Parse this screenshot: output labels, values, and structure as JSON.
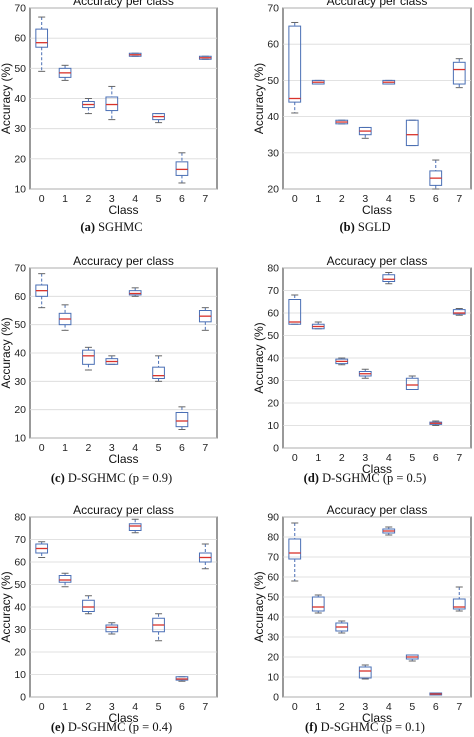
{
  "chart_data": [
    {
      "type": "box",
      "title": "Accuracy per class",
      "xlabel": "Class",
      "ylabel": "Accuracy (%)",
      "caption_letter": "(a)",
      "caption_text": "SGHMC",
      "categories": [
        "0",
        "1",
        "2",
        "3",
        "4",
        "5",
        "6",
        "7"
      ],
      "ylim": [
        10,
        70
      ],
      "yticks": [
        10,
        20,
        30,
        40,
        50,
        60,
        70
      ],
      "grid": true,
      "boxes": [
        {
          "whislo": 49,
          "q1": 57,
          "med": 58.5,
          "q3": 63,
          "whishi": 67
        },
        {
          "whislo": 46,
          "q1": 47,
          "med": 48.5,
          "q3": 50,
          "whishi": 51
        },
        {
          "whislo": 35,
          "q1": 37,
          "med": 38,
          "q3": 39,
          "whishi": 40
        },
        {
          "whislo": 33,
          "q1": 36,
          "med": 38,
          "q3": 40.5,
          "whishi": 44
        },
        {
          "whislo": 54,
          "q1": 54,
          "med": 54.5,
          "q3": 55,
          "whishi": 55
        },
        {
          "whislo": 32,
          "q1": 33,
          "med": 34,
          "q3": 35,
          "whishi": 35
        },
        {
          "whislo": 12,
          "q1": 14.5,
          "med": 16.5,
          "q3": 19,
          "whishi": 22
        },
        {
          "whislo": 53,
          "q1": 53,
          "med": 53.5,
          "q3": 54,
          "whishi": 54
        }
      ]
    },
    {
      "type": "box",
      "title": "Accuracy per class",
      "xlabel": "Class",
      "ylabel": "Accuracy (%)",
      "caption_letter": "(b)",
      "caption_text": "SGLD",
      "categories": [
        "0",
        "1",
        "2",
        "3",
        "4",
        "5",
        "6",
        "7"
      ],
      "ylim": [
        20,
        70
      ],
      "yticks": [
        20,
        30,
        40,
        50,
        60,
        70
      ],
      "grid": true,
      "boxes": [
        {
          "whislo": 41,
          "q1": 44,
          "med": 45,
          "q3": 65,
          "whishi": 66
        },
        {
          "whislo": 49,
          "q1": 49,
          "med": 49.5,
          "q3": 50,
          "whishi": 50
        },
        {
          "whislo": 38,
          "q1": 38,
          "med": 38.5,
          "q3": 39,
          "whishi": 39
        },
        {
          "whislo": 34,
          "q1": 35,
          "med": 36,
          "q3": 37,
          "whishi": 37
        },
        {
          "whislo": 49,
          "q1": 49,
          "med": 49.5,
          "q3": 50,
          "whishi": 50
        },
        {
          "whislo": 32,
          "q1": 32,
          "med": 35,
          "q3": 39,
          "whishi": 39
        },
        {
          "whislo": 20,
          "q1": 21,
          "med": 23,
          "q3": 25,
          "whishi": 28
        },
        {
          "whislo": 48,
          "q1": 49,
          "med": 53,
          "q3": 55,
          "whishi": 56
        }
      ]
    },
    {
      "type": "box",
      "title": "Accuracy per class",
      "xlabel": "Class",
      "ylabel": "Accuracy (%)",
      "caption_letter": "(c)",
      "caption_text": "D-SGHMC (p = 0.9)",
      "categories": [
        "0",
        "1",
        "2",
        "3",
        "4",
        "5",
        "6",
        "7"
      ],
      "ylim": [
        10,
        70
      ],
      "yticks": [
        10,
        20,
        30,
        40,
        50,
        60,
        70
      ],
      "grid": true,
      "boxes": [
        {
          "whislo": 56,
          "q1": 60,
          "med": 62,
          "q3": 64,
          "whishi": 68
        },
        {
          "whislo": 48,
          "q1": 50,
          "med": 52,
          "q3": 54,
          "whishi": 57
        },
        {
          "whislo": 34,
          "q1": 36,
          "med": 39,
          "q3": 41,
          "whishi": 42
        },
        {
          "whislo": 36,
          "q1": 36,
          "med": 37,
          "q3": 38,
          "whishi": 39
        },
        {
          "whislo": 60,
          "q1": 60.5,
          "med": 61,
          "q3": 62,
          "whishi": 63
        },
        {
          "whislo": 30,
          "q1": 31,
          "med": 32,
          "q3": 35,
          "whishi": 39
        },
        {
          "whislo": 13,
          "q1": 14,
          "med": 16,
          "q3": 19,
          "whishi": 21
        },
        {
          "whislo": 48,
          "q1": 51,
          "med": 53,
          "q3": 55,
          "whishi": 56
        }
      ]
    },
    {
      "type": "box",
      "title": "Accuracy per class",
      "xlabel": "Class",
      "ylabel": "Accuracy (%)",
      "caption_letter": "(d)",
      "caption_text": "D-SGHMC (p = 0.5)",
      "categories": [
        "0",
        "1",
        "2",
        "3",
        "4",
        "5",
        "6",
        "7"
      ],
      "ylim": [
        0,
        80
      ],
      "yticks": [
        0,
        10,
        20,
        30,
        40,
        50,
        60,
        70,
        80
      ],
      "grid": true,
      "boxes": [
        {
          "whislo": 55,
          "q1": 55,
          "med": 56,
          "q3": 66,
          "whishi": 68
        },
        {
          "whislo": 53,
          "q1": 53,
          "med": 54,
          "q3": 55,
          "whishi": 56
        },
        {
          "whislo": 37,
          "q1": 37.5,
          "med": 38.5,
          "q3": 39.5,
          "whishi": 40
        },
        {
          "whislo": 31,
          "q1": 32,
          "med": 33,
          "q3": 34,
          "whishi": 35
        },
        {
          "whislo": 73,
          "q1": 74,
          "med": 75,
          "q3": 77,
          "whishi": 78
        },
        {
          "whislo": 26,
          "q1": 26,
          "med": 28,
          "q3": 31,
          "whishi": 32
        },
        {
          "whislo": 10,
          "q1": 10.5,
          "med": 11,
          "q3": 11.5,
          "whishi": 12
        },
        {
          "whislo": 59,
          "q1": 59.5,
          "med": 60,
          "q3": 61.5,
          "whishi": 62
        }
      ]
    },
    {
      "type": "box",
      "title": "Accuracy per class",
      "xlabel": "Class",
      "ylabel": "Accuracy (%)",
      "caption_letter": "(e)",
      "caption_text": "D-SGHMC (p = 0.4)",
      "categories": [
        "0",
        "1",
        "2",
        "3",
        "4",
        "5",
        "6",
        "7"
      ],
      "ylim": [
        0,
        80
      ],
      "yticks": [
        0,
        10,
        20,
        30,
        40,
        50,
        60,
        70,
        80
      ],
      "grid": true,
      "boxes": [
        {
          "whislo": 62,
          "q1": 64,
          "med": 66,
          "q3": 68,
          "whishi": 69
        },
        {
          "whislo": 49,
          "q1": 51,
          "med": 52,
          "q3": 54,
          "whishi": 55
        },
        {
          "whislo": 37,
          "q1": 38,
          "med": 40,
          "q3": 43,
          "whishi": 45
        },
        {
          "whislo": 28,
          "q1": 29,
          "med": 31,
          "q3": 32,
          "whishi": 33
        },
        {
          "whislo": 73,
          "q1": 74,
          "med": 76,
          "q3": 77,
          "whishi": 79
        },
        {
          "whislo": 25,
          "q1": 29,
          "med": 32,
          "q3": 35,
          "whishi": 37
        },
        {
          "whislo": 7,
          "q1": 7.5,
          "med": 8,
          "q3": 9,
          "whishi": 9
        },
        {
          "whislo": 57,
          "q1": 60,
          "med": 62,
          "q3": 64,
          "whishi": 68
        }
      ]
    },
    {
      "type": "box",
      "title": "Accuracy per class",
      "xlabel": "Class",
      "ylabel": "Accuracy (%)",
      "caption_letter": "(f)",
      "caption_text": "D-SGHMC (p = 0.1)",
      "categories": [
        "0",
        "1",
        "2",
        "3",
        "4",
        "5",
        "6",
        "7"
      ],
      "ylim": [
        0,
        90
      ],
      "yticks": [
        0,
        10,
        20,
        30,
        40,
        50,
        60,
        70,
        80,
        90
      ],
      "grid": true,
      "boxes": [
        {
          "whislo": 58,
          "q1": 69,
          "med": 72,
          "q3": 79,
          "whishi": 87
        },
        {
          "whislo": 42,
          "q1": 43,
          "med": 45,
          "q3": 50,
          "whishi": 51
        },
        {
          "whislo": 32,
          "q1": 33,
          "med": 35,
          "q3": 37,
          "whishi": 38
        },
        {
          "whislo": 9,
          "q1": 9.5,
          "med": 13,
          "q3": 15,
          "whishi": 16
        },
        {
          "whislo": 81,
          "q1": 82,
          "med": 83,
          "q3": 84,
          "whishi": 85
        },
        {
          "whislo": 18,
          "q1": 19,
          "med": 20,
          "q3": 21,
          "whishi": 21
        },
        {
          "whislo": 1,
          "q1": 1,
          "med": 1.5,
          "q3": 2,
          "whishi": 2
        },
        {
          "whislo": 43,
          "q1": 44,
          "med": 45,
          "q3": 49,
          "whishi": 55
        }
      ]
    }
  ]
}
